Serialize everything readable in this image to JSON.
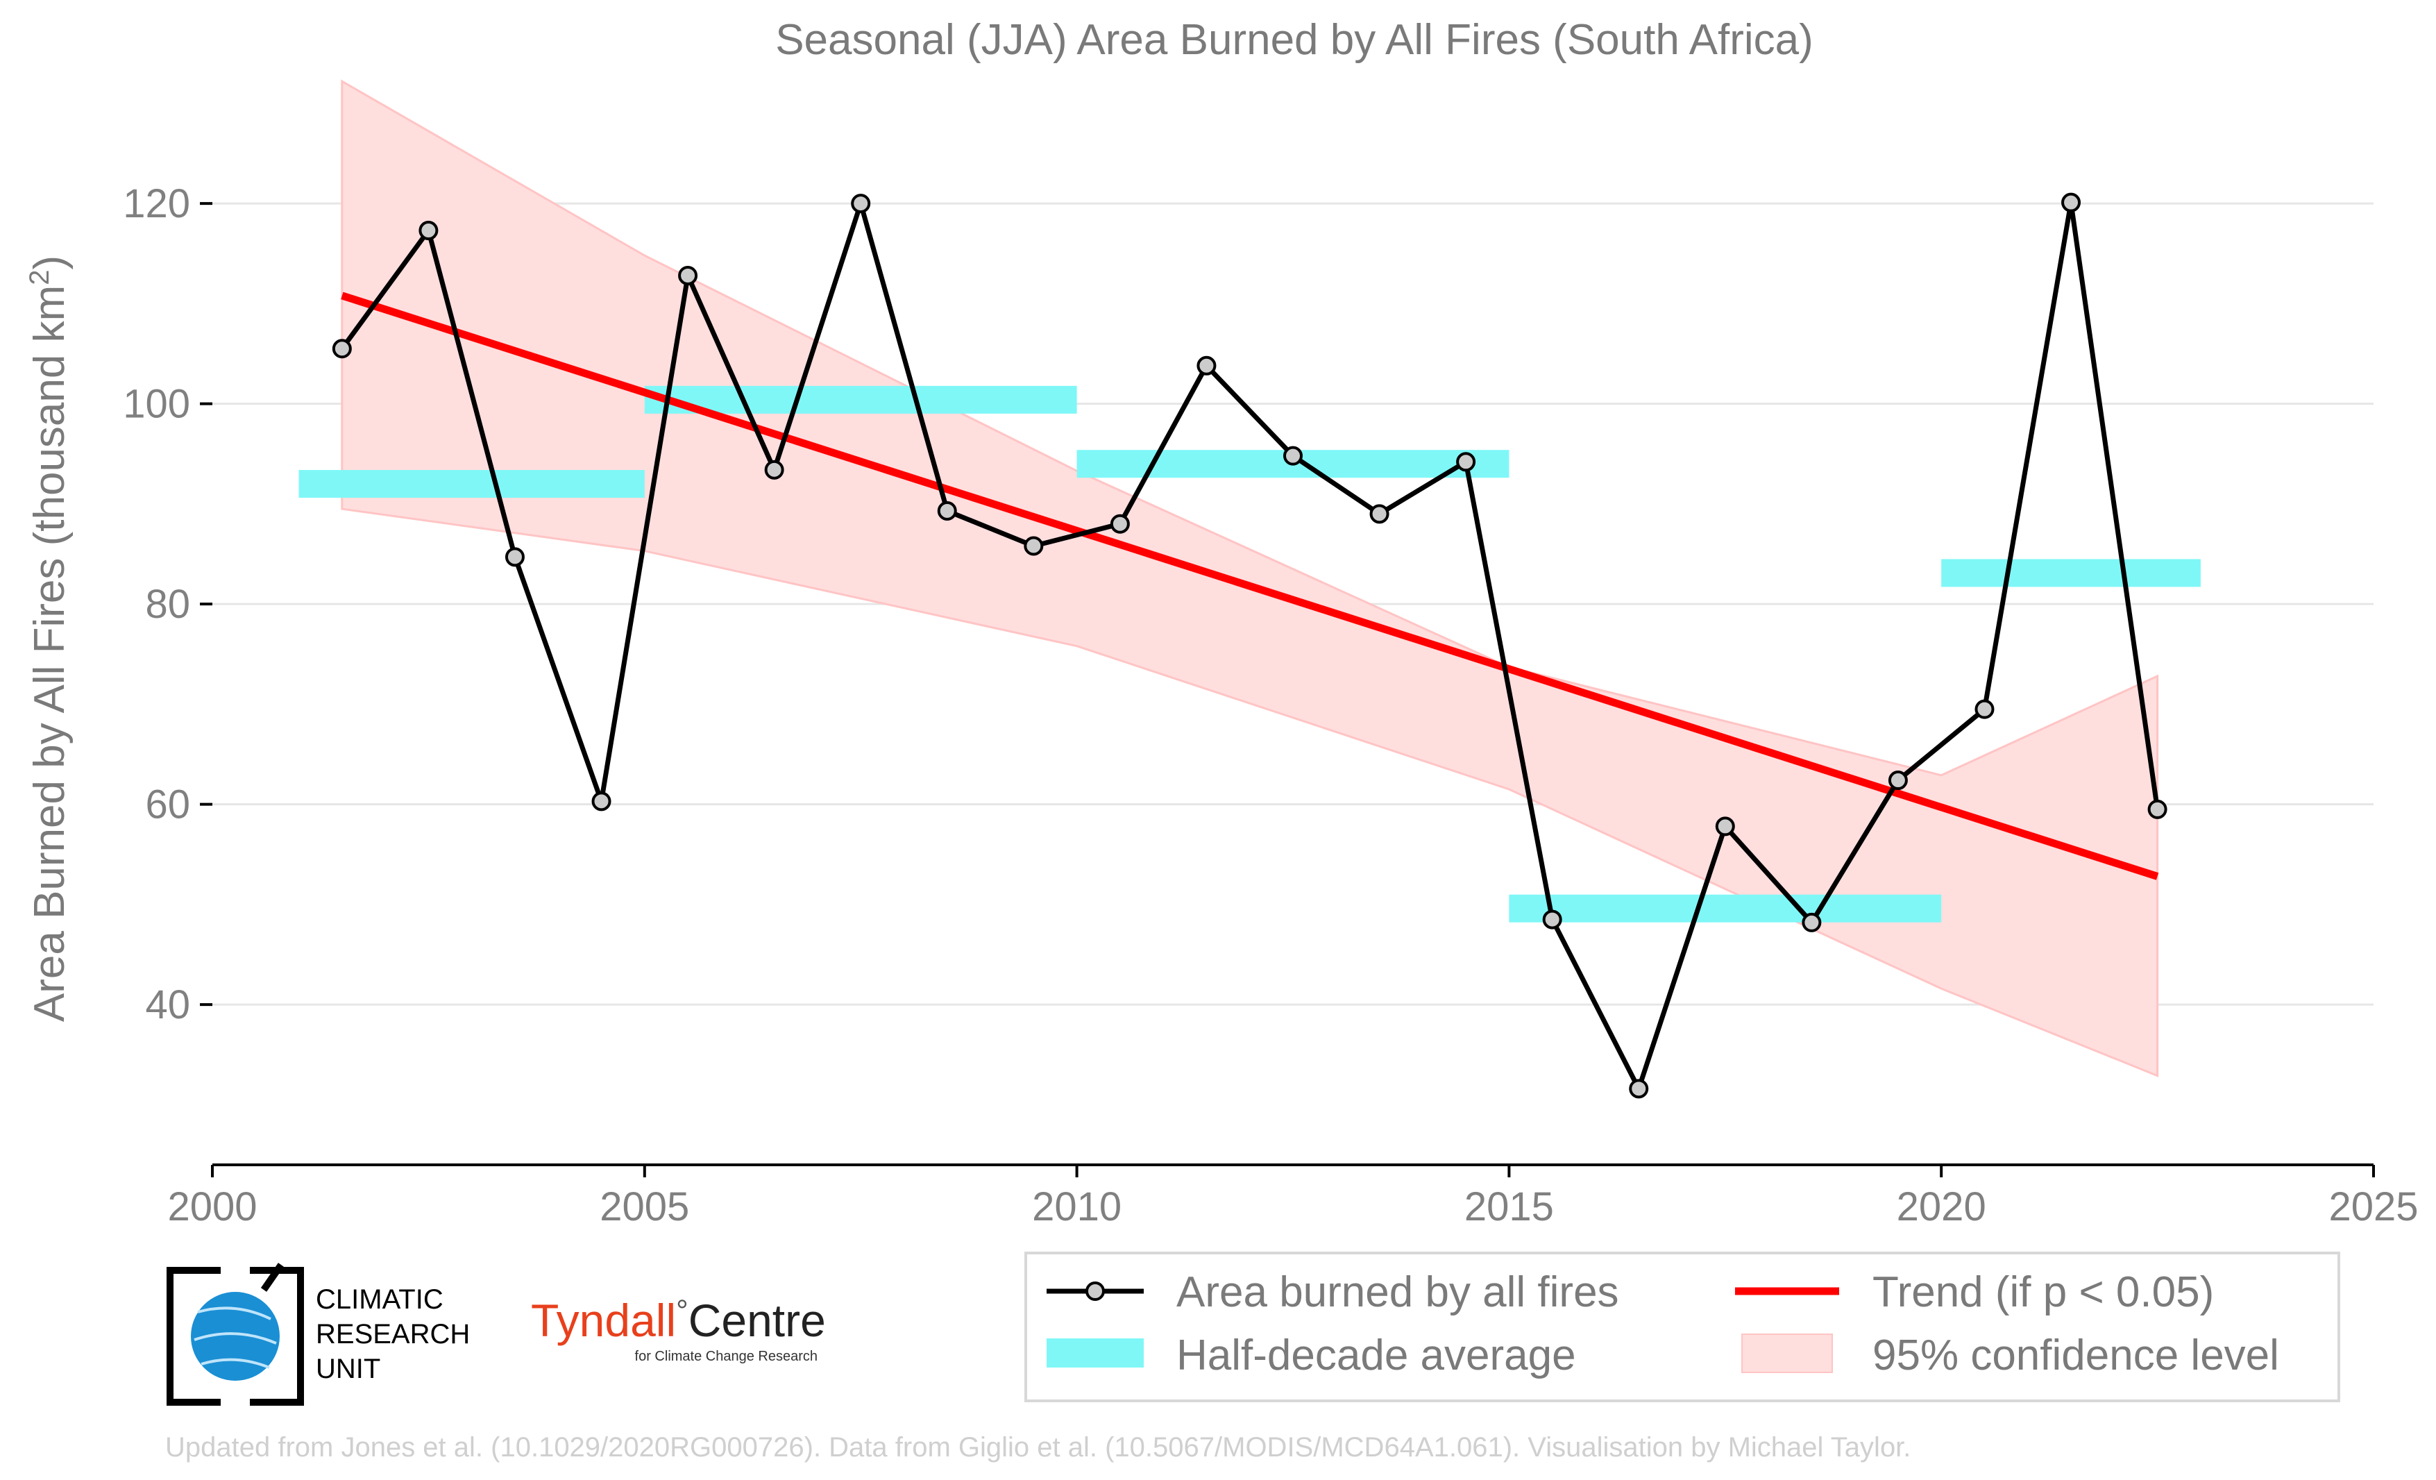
{
  "title": "Seasonal (JJA) Area Burned by All Fires (South Africa)",
  "ylabel_prefix": "Area Burned by All Fires (thousand km",
  "ylabel_sup": "2",
  "ylabel_suffix": ")",
  "credit": "Updated from Jones et al. (10.1029/2020RG000726). Data from Giglio et al. (10.5067/MODIS/MCD64A1.061). Visualisation by Michael Taylor.",
  "logos": {
    "cru": [
      "CLIMATIC",
      "RESEARCH",
      "UNIT"
    ],
    "tyndall_main": "Tyndall",
    "tyndall_degree": "°",
    "tyndall_centre": "Centre",
    "tyndall_sub": "for Climate Change Research"
  },
  "colors": {
    "series": "#000000",
    "marker_fill": "#cccccc",
    "trend": "#ff0000",
    "half_decade": "#7ff7f7",
    "ci_fill": "#ffdede",
    "ci_edge": "#ffc4c4",
    "grid": "#e6e6e6",
    "axis": "#000000"
  },
  "chart_data": {
    "type": "line",
    "xlim": [
      2000,
      2025
    ],
    "ylim": [
      24,
      132
    ],
    "xticks": [
      2000,
      2005,
      2010,
      2015,
      2020,
      2025
    ],
    "yticks": [
      40,
      60,
      80,
      100,
      120
    ],
    "grid": "horizontal",
    "legend_position": "bottom-right",
    "series": [
      {
        "name": "Area burned by all fires",
        "x": [
          2001.5,
          2002.5,
          2003.5,
          2004.5,
          2005.5,
          2006.5,
          2007.5,
          2008.5,
          2009.5,
          2010.5,
          2011.5,
          2012.5,
          2013.5,
          2014.5,
          2015.5,
          2016.5,
          2017.5,
          2018.5,
          2019.5,
          2020.5,
          2021.5,
          2022.5
        ],
        "y": [
          105.5,
          117.3,
          84.7,
          60.3,
          112.8,
          93.4,
          120.0,
          89.3,
          85.8,
          88.0,
          103.8,
          94.8,
          89.0,
          94.2,
          48.5,
          31.6,
          57.8,
          48.2,
          62.4,
          69.5,
          120.1,
          59.5
        ]
      }
    ],
    "half_decade_averages": {
      "name": "Half-decade average",
      "segments": [
        {
          "x0": 2001.0,
          "x1": 2005.0,
          "y": 92.0
        },
        {
          "x0": 2005.0,
          "x1": 2010.0,
          "y": 100.4
        },
        {
          "x0": 2010.0,
          "x1": 2015.0,
          "y": 94.0
        },
        {
          "x0": 2015.0,
          "x1": 2020.0,
          "y": 49.6
        },
        {
          "x0": 2020.0,
          "x1": 2023.0,
          "y": 83.1
        }
      ]
    },
    "trend": {
      "name": "Trend (if p < 0.05)",
      "x": [
        2001.5,
        2022.5
      ],
      "y": [
        110.8,
        52.8
      ]
    },
    "confidence_band": {
      "name": "95% confidence level",
      "x": [
        2001.5,
        2005,
        2010,
        2015,
        2020,
        2022.5
      ],
      "upper": [
        132.2,
        114.8,
        93.3,
        73.7,
        62.9,
        72.8
      ],
      "lower": [
        89.5,
        85.3,
        75.8,
        61.5,
        41.6,
        32.9
      ]
    },
    "legend": [
      {
        "label": "Area burned by all fires",
        "kind": "line-marker"
      },
      {
        "label": "Trend (if p < 0.05)",
        "kind": "line-red"
      },
      {
        "label": "Half-decade average",
        "kind": "patch-cyan"
      },
      {
        "label": "95% confidence level",
        "kind": "patch-pink"
      }
    ]
  }
}
